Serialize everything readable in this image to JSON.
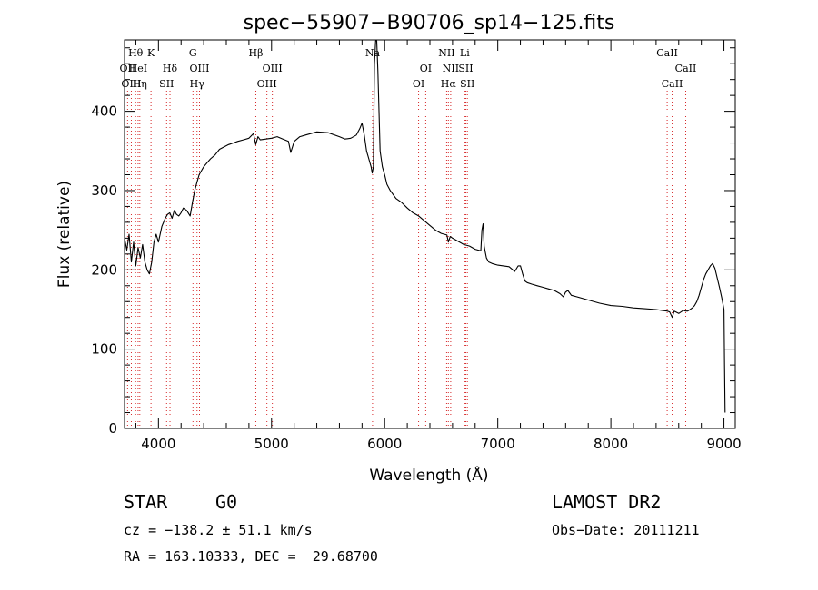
{
  "chart_data": {
    "type": "line",
    "title": "spec−55907−B90706_sp14−125.fits",
    "xlabel": "Wavelength (Å)",
    "ylabel": "Flux (relative)",
    "xlim": [
      3700,
      9100
    ],
    "ylim": [
      0,
      490
    ],
    "xticks": [
      4000,
      5000,
      6000,
      7000,
      8000,
      9000
    ],
    "xtick_labels": [
      "4000",
      "5000",
      "6000",
      "7000",
      "8000",
      "9000"
    ],
    "yticks": [
      0,
      100,
      200,
      300,
      400
    ],
    "ytick_labels": [
      "0",
      "100",
      "200",
      "300",
      "400"
    ],
    "grid": false,
    "legend": "none",
    "series": [
      {
        "x": [
          3700,
          3720,
          3740,
          3760,
          3780,
          3800,
          3820,
          3840,
          3860,
          3880,
          3900,
          3920,
          3940,
          3960,
          3980,
          4000,
          4030,
          4060,
          4080,
          4100,
          4120,
          4140,
          4160,
          4180,
          4200,
          4220,
          4250,
          4280,
          4300,
          4320,
          4340,
          4360,
          4380,
          4400,
          4430,
          4460,
          4500,
          4540,
          4580,
          4620,
          4660,
          4700,
          4750,
          4800,
          4840,
          4860,
          4880,
          4900,
          4950,
          5000,
          5050,
          5100,
          5150,
          5170,
          5200,
          5250,
          5300,
          5400,
          5500,
          5600,
          5650,
          5700,
          5750,
          5780,
          5800,
          5820,
          5840,
          5860,
          5880,
          5890,
          5900,
          5910,
          5920,
          5930,
          5940,
          5950,
          5960,
          5980,
          6000,
          6020,
          6050,
          6100,
          6150,
          6200,
          6250,
          6300,
          6350,
          6400,
          6450,
          6500,
          6550,
          6563,
          6580,
          6600,
          6650,
          6700,
          6750,
          6800,
          6850,
          6860,
          6870,
          6880,
          6890,
          6900,
          6920,
          6950,
          7000,
          7050,
          7100,
          7150,
          7180,
          7200,
          7220,
          7240,
          7260,
          7300,
          7350,
          7400,
          7450,
          7500,
          7550,
          7580,
          7600,
          7620,
          7650,
          7700,
          7800,
          7900,
          8000,
          8100,
          8200,
          8300,
          8400,
          8450,
          8498,
          8520,
          8542,
          8560,
          8600,
          8640,
          8662,
          8680,
          8700,
          8720,
          8740,
          8760,
          8780,
          8800,
          8820,
          8840,
          8860,
          8880,
          8900,
          8920,
          8940,
          8960,
          8980,
          9000,
          9005,
          9010
        ],
        "y": [
          240,
          225,
          245,
          210,
          235,
          205,
          228,
          215,
          232,
          210,
          200,
          195,
          210,
          235,
          245,
          235,
          255,
          265,
          270,
          272,
          265,
          275,
          270,
          268,
          272,
          278,
          275,
          268,
          285,
          300,
          310,
          320,
          325,
          330,
          335,
          340,
          345,
          352,
          355,
          358,
          360,
          362,
          364,
          366,
          372,
          358,
          368,
          364,
          365,
          366,
          368,
          365,
          362,
          348,
          362,
          368,
          370,
          374,
          373,
          368,
          365,
          366,
          370,
          378,
          385,
          370,
          350,
          340,
          330,
          322,
          330,
          460,
          505,
          500,
          450,
          400,
          350,
          330,
          320,
          308,
          300,
          290,
          285,
          278,
          272,
          268,
          262,
          256,
          250,
          246,
          244,
          235,
          242,
          240,
          236,
          232,
          230,
          226,
          224,
          250,
          258,
          230,
          222,
          215,
          210,
          208,
          206,
          205,
          204,
          198,
          205,
          205,
          195,
          186,
          184,
          182,
          180,
          178,
          176,
          174,
          170,
          166,
          172,
          174,
          168,
          166,
          162,
          158,
          155,
          154,
          152,
          151,
          150,
          149,
          148,
          147,
          140,
          148,
          145,
          149,
          148,
          148,
          150,
          152,
          155,
          160,
          168,
          178,
          188,
          195,
          200,
          205,
          208,
          202,
          190,
          178,
          165,
          150,
          80,
          20
        ]
      }
    ],
    "line_markers": [
      {
        "label": "Hθ",
        "wavelength": 3798,
        "row": 1
      },
      {
        "label": "OII",
        "wavelength": 3727,
        "row": 2
      },
      {
        "label": "OIII",
        "wavelength": 3760,
        "row": 3
      },
      {
        "label": "HeI",
        "wavelength": 3820,
        "row": 2
      },
      {
        "label": "Hη",
        "wavelength": 3835,
        "row": 3
      },
      {
        "label": "K",
        "wavelength": 3934,
        "row": 1
      },
      {
        "label": "Hδ",
        "wavelength": 4102,
        "row": 2
      },
      {
        "label": "SII",
        "wavelength": 4072,
        "row": 3
      },
      {
        "label": "G",
        "wavelength": 4305,
        "row": 1
      },
      {
        "label": "OIII",
        "wavelength": 4363,
        "row": 2
      },
      {
        "label": "Hγ",
        "wavelength": 4341,
        "row": 3
      },
      {
        "label": "Hβ",
        "wavelength": 4861,
        "row": 1
      },
      {
        "label": "OIII",
        "wavelength": 5007,
        "row": 2
      },
      {
        "label": "OIII",
        "wavelength": 4959,
        "row": 3
      },
      {
        "label": "Na",
        "wavelength": 5893,
        "row": 1
      },
      {
        "label": "OI",
        "wavelength": 6363,
        "row": 2
      },
      {
        "label": "OI",
        "wavelength": 6300,
        "row": 3
      },
      {
        "label": "NII",
        "wavelength": 6548,
        "row": 1
      },
      {
        "label": "Li",
        "wavelength": 6708,
        "row": 1
      },
      {
        "label": "NII",
        "wavelength": 6584,
        "row": 2
      },
      {
        "label": "SII",
        "wavelength": 6717,
        "row": 2
      },
      {
        "label": "Hα",
        "wavelength": 6563,
        "row": 3
      },
      {
        "label": "SII",
        "wavelength": 6731,
        "row": 3
      },
      {
        "label": "CaII",
        "wavelength": 8498,
        "row": 1
      },
      {
        "label": "CaII",
        "wavelength": 8662,
        "row": 2
      },
      {
        "label": "CaII",
        "wavelength": 8542,
        "row": 3
      }
    ]
  },
  "info": {
    "class_label": "STAR",
    "subclass_label": "G0",
    "survey": "LAMOST DR2",
    "redshift": "cz = −138.2 ± 51.1 km/s",
    "obs_date": "Obs−Date: 20111211",
    "coords": "RA = 163.10333, DEC =  29.68700"
  },
  "colors": {
    "spectrum": "#000000",
    "marker_line": "#d62728",
    "axes": "#000000"
  }
}
